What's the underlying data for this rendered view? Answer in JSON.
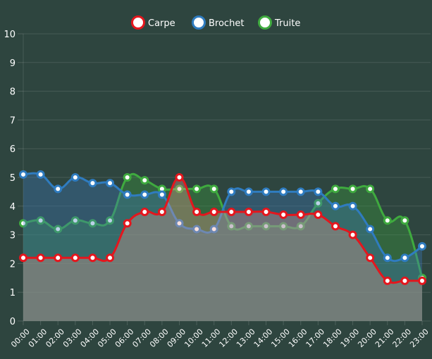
{
  "chart_data": {
    "type": "line",
    "title": "",
    "xlabel": "",
    "ylabel": "",
    "ylim": [
      0,
      10
    ],
    "yticks": [
      "0",
      "1",
      "2",
      "3",
      "4",
      "5",
      "6",
      "7",
      "8",
      "9",
      "10"
    ],
    "grid": true,
    "legend_position": "top",
    "filled": true,
    "categories": [
      "00:00",
      "01:00",
      "02:00",
      "03:00",
      "04:00",
      "05:00",
      "06:00",
      "07:00",
      "08:00",
      "09:00",
      "10:00",
      "11:00",
      "12:00",
      "13:00",
      "14:00",
      "15:00",
      "16:00",
      "17:00",
      "18:00",
      "19:00",
      "20:00",
      "21:00",
      "22:00",
      "23:00"
    ],
    "series": [
      {
        "name": "Carpe",
        "color": "#e4161d",
        "fill": "rgba(236,160,150,0.33)",
        "values": [
          2.2,
          2.2,
          2.2,
          2.2,
          2.2,
          2.2,
          3.4,
          3.8,
          3.8,
          5.0,
          3.8,
          3.8,
          3.8,
          3.8,
          3.8,
          3.7,
          3.7,
          3.7,
          3.3,
          3.0,
          2.2,
          1.4,
          1.4,
          1.4
        ]
      },
      {
        "name": "Brochet",
        "color": "#2f7cc0",
        "fill": "rgba(60,120,190,0.35)",
        "values": [
          5.1,
          5.1,
          4.6,
          5.0,
          4.8,
          4.8,
          4.4,
          4.4,
          4.4,
          3.4,
          3.2,
          3.2,
          4.5,
          4.5,
          4.5,
          4.5,
          4.5,
          4.5,
          4.0,
          4.0,
          3.2,
          2.2,
          2.2,
          2.6
        ]
      },
      {
        "name": "Truite",
        "color": "#3faa3f",
        "fill": "rgba(60,160,60,0.35)",
        "values": [
          3.4,
          3.5,
          3.2,
          3.5,
          3.4,
          3.5,
          5.0,
          4.9,
          4.6,
          4.6,
          4.6,
          4.6,
          3.3,
          3.3,
          3.3,
          3.3,
          3.3,
          4.1,
          4.6,
          4.6,
          4.6,
          3.5,
          3.5,
          1.5
        ]
      }
    ]
  }
}
